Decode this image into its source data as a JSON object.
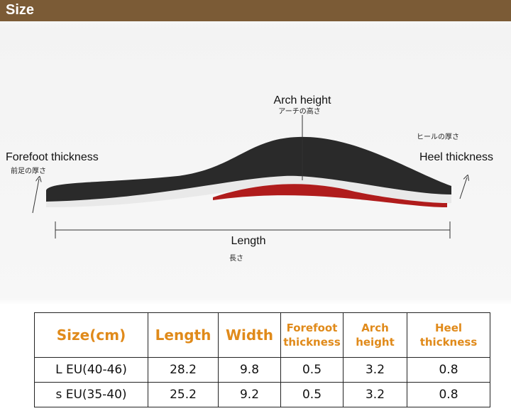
{
  "header": {
    "title": "Size"
  },
  "diagram": {
    "arch_height": {
      "label": "Arch height",
      "sublabel": "アーチの高さ"
    },
    "forefoot_thickness": {
      "label": "Forefoot thickness",
      "sublabel": "前足の厚さ"
    },
    "heel_thickness": {
      "label": "Heel thickness",
      "sublabel": "ヒールの厚さ"
    },
    "length": {
      "label": "Length",
      "sublabel": "長さ"
    }
  },
  "table": {
    "header": [
      "Size(cm)",
      "Length",
      "Width",
      "Forefoot thickness",
      "Arch height",
      "Heel thickness"
    ],
    "rows": [
      [
        "L EU(40-46)",
        "28.2",
        "9.8",
        "0.5",
        "3.2",
        "0.8"
      ],
      [
        "s EU(35-40)",
        "25.2",
        "9.2",
        "0.5",
        "3.2",
        "0.8"
      ]
    ]
  }
}
